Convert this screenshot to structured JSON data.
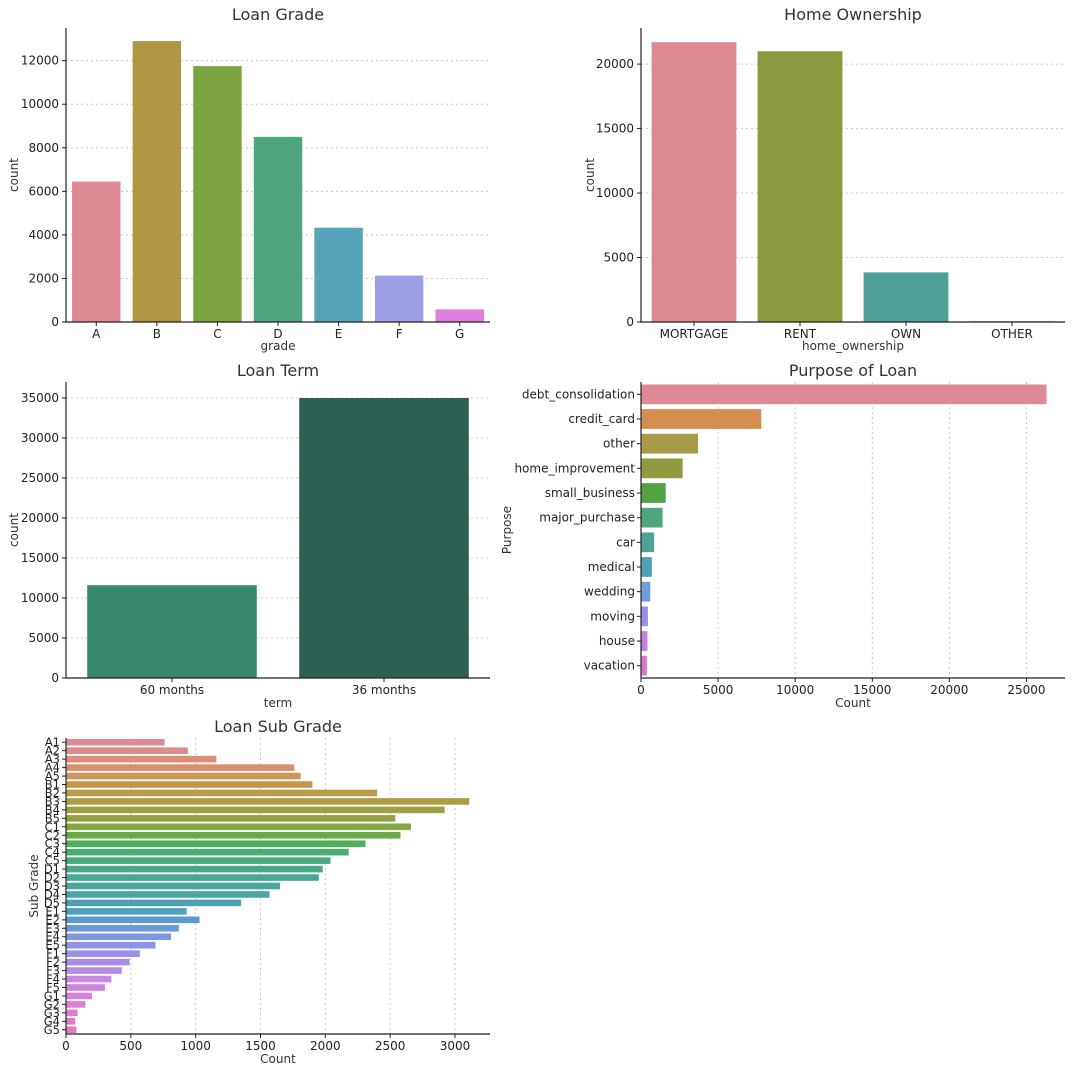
{
  "chart_data": [
    {
      "id": "grade",
      "type": "bar",
      "orientation": "vertical",
      "title": "Loan Grade",
      "xlabel": "grade",
      "ylabel": "count",
      "categories": [
        "A",
        "B",
        "C",
        "D",
        "E",
        "F",
        "G"
      ],
      "values": [
        6450,
        12900,
        11750,
        8500,
        4330,
        2130,
        580
      ],
      "colors": [
        "#dd8a96",
        "#b29646",
        "#7ba441",
        "#4fa57d",
        "#56a4b8",
        "#9f9fe6",
        "#e07de0"
      ],
      "ylim": [
        0,
        13500
      ],
      "yticks": [
        0,
        2000,
        4000,
        6000,
        8000,
        10000,
        12000
      ],
      "grid": true
    },
    {
      "id": "home",
      "type": "bar",
      "orientation": "vertical",
      "title": "Home Ownership",
      "xlabel": "home_ownership",
      "ylabel": "count",
      "categories": [
        "MORTGAGE",
        "RENT",
        "OWN",
        "OTHER"
      ],
      "values": [
        21700,
        21000,
        3850,
        60
      ],
      "colors": [
        "#dd8a96",
        "#8a9a3e",
        "#4fa096",
        "#a880db"
      ],
      "ylim": [
        0,
        22800
      ],
      "yticks": [
        0,
        5000,
        10000,
        15000,
        20000
      ],
      "grid": true
    },
    {
      "id": "term",
      "type": "bar",
      "orientation": "vertical",
      "title": "Loan Term",
      "xlabel": "term",
      "ylabel": "count",
      "categories": [
        "60 months",
        "36 months"
      ],
      "values": [
        11600,
        35000
      ],
      "colors": [
        "#368a6b",
        "#2d5f52"
      ],
      "ylim": [
        0,
        37000
      ],
      "yticks": [
        0,
        5000,
        10000,
        15000,
        20000,
        25000,
        30000,
        35000
      ],
      "grid": true
    },
    {
      "id": "purpose",
      "type": "bar",
      "orientation": "horizontal",
      "title": "Purpose of Loan",
      "xlabel": "Count",
      "ylabel": "Purpose",
      "categories": [
        "debt_consolidation",
        "credit_card",
        "other",
        "home_improvement",
        "small_business",
        "major_purchase",
        "car",
        "medical",
        "wedding",
        "moving",
        "house",
        "vacation"
      ],
      "values": [
        26300,
        7800,
        3700,
        2700,
        1600,
        1400,
        850,
        700,
        600,
        450,
        420,
        380
      ],
      "colors": [
        "#dd8a96",
        "#d58c4f",
        "#a89a48",
        "#8f9b3e",
        "#52a244",
        "#4fa580",
        "#4fa294",
        "#50a0b3",
        "#6e9ee0",
        "#9c8fe4",
        "#c47de0",
        "#dd78c8"
      ],
      "xlim": [
        0,
        27500
      ],
      "xticks": [
        0,
        5000,
        10000,
        15000,
        20000,
        25000
      ],
      "grid": true
    },
    {
      "id": "subgrade",
      "type": "bar",
      "orientation": "horizontal",
      "title": "Loan Sub Grade",
      "xlabel": "Count",
      "ylabel": "Sub Grade",
      "categories": [
        "A1",
        "A2",
        "A3",
        "A4",
        "A5",
        "B1",
        "B2",
        "B3",
        "B4",
        "B5",
        "C1",
        "C2",
        "C3",
        "C4",
        "C5",
        "D1",
        "D2",
        "D3",
        "D4",
        "D5",
        "E1",
        "E2",
        "E3",
        "E4",
        "E5",
        "F1",
        "F2",
        "F3",
        "F4",
        "F5",
        "G1",
        "G2",
        "G3",
        "G4",
        "G5"
      ],
      "values": [
        760,
        940,
        1160,
        1760,
        1810,
        1900,
        2400,
        3110,
        2920,
        2540,
        2660,
        2580,
        2310,
        2180,
        2040,
        1980,
        1950,
        1650,
        1570,
        1350,
        930,
        1030,
        870,
        810,
        690,
        570,
        490,
        430,
        350,
        300,
        200,
        150,
        90,
        70,
        80
      ],
      "colors": [
        "#dd8a96",
        "#dd8c88",
        "#dc8e7b",
        "#d8906c",
        "#d1935a",
        "#c79649",
        "#b99c46",
        "#ac9d44",
        "#9fa043",
        "#91a342",
        "#7fa842",
        "#6bab45",
        "#4fb05a",
        "#4bad70",
        "#4aab7f",
        "#4aa88a",
        "#49a794",
        "#48a69c",
        "#4aa4a8",
        "#4ca2b3",
        "#4f9fbf",
        "#5a9ccb",
        "#6b99d8",
        "#7c96e1",
        "#8c94e5",
        "#9b91e6",
        "#aa8de6",
        "#b98ae5",
        "#c786e2",
        "#d182df",
        "#d980dc",
        "#dd7ed6",
        "#e07ccf",
        "#e17ac8",
        "#e278c2"
      ],
      "xlim": [
        0,
        3270
      ],
      "xticks": [
        0,
        500,
        1000,
        1500,
        2000,
        2500,
        3000
      ],
      "grid": true
    }
  ]
}
